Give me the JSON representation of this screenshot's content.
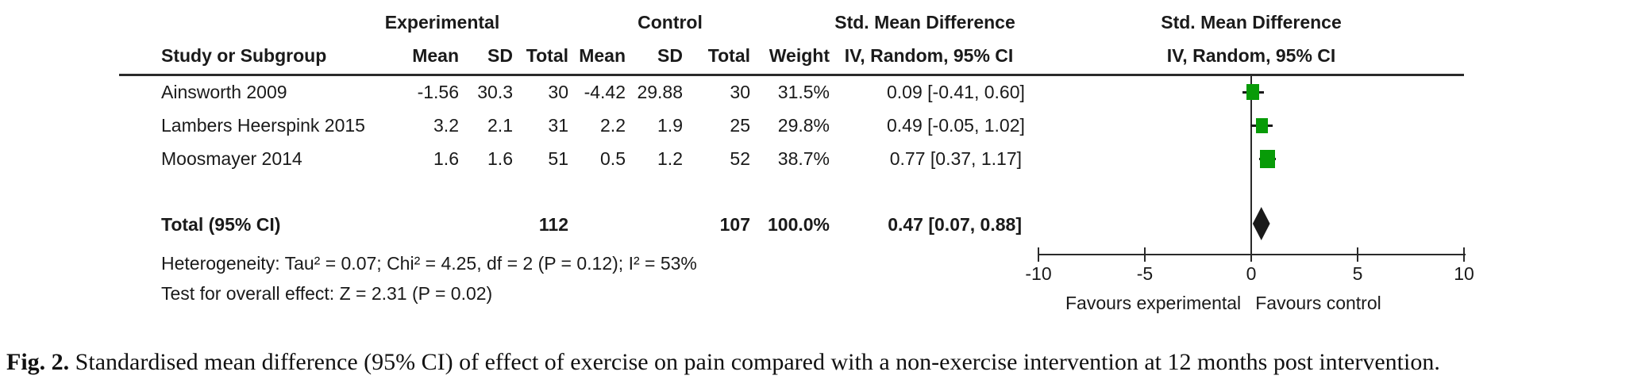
{
  "figure": {
    "header": {
      "group_experimental": "Experimental",
      "group_control": "Control",
      "smd_left_title": "Std. Mean Difference",
      "smd_left_sub": "IV, Random, 95% CI",
      "smd_right_title": "Std. Mean Difference",
      "smd_right_sub": "IV, Random, 95% CI",
      "col_study": "Study or Subgroup",
      "col_mean_exp": "Mean",
      "col_sd_exp": "SD",
      "col_total_exp": "Total",
      "col_mean_ctl": "Mean",
      "col_sd_ctl": "SD",
      "col_total_ctl": "Total",
      "col_weight": "Weight"
    },
    "footnotes": {
      "heterogeneity": "Heterogeneity: Tau² = 0.07; Chi² = 4.25, df = 2 (P = 0.12); I² = 53%",
      "overall_effect": "Test for overall effect: Z = 2.31 (P = 0.02)"
    },
    "axis_labels": {
      "favours_left": "Favours experimental",
      "favours_right": "Favours control"
    }
  },
  "chart_data": {
    "type": "forest",
    "effect_measure": "Std. Mean Difference, IV, Random, 95% CI",
    "studies": [
      {
        "name": "Ainsworth 2009",
        "mean_e": "-1.56",
        "sd_e": "30.3",
        "total_e": "30",
        "mean_c": "-4.42",
        "sd_c": "29.88",
        "total_c": "30",
        "weight": "31.5%",
        "weight_val": 31.5,
        "est": "0.09 [-0.41, 0.60]",
        "smd": 0.09,
        "lo": -0.41,
        "hi": 0.6
      },
      {
        "name": "Lambers Heerspink 2015",
        "mean_e": "3.2",
        "sd_e": "2.1",
        "total_e": "31",
        "mean_c": "2.2",
        "sd_c": "1.9",
        "total_c": "25",
        "weight": "29.8%",
        "weight_val": 29.8,
        "est": "0.49 [-0.05, 1.02]",
        "smd": 0.49,
        "lo": -0.05,
        "hi": 1.02
      },
      {
        "name": "Moosmayer 2014",
        "mean_e": "1.6",
        "sd_e": "1.6",
        "total_e": "51",
        "mean_c": "0.5",
        "sd_c": "1.2",
        "total_c": "52",
        "weight": "38.7%",
        "weight_val": 38.7,
        "est": "0.77 [0.37, 1.17]",
        "smd": 0.77,
        "lo": 0.37,
        "hi": 1.17
      }
    ],
    "total": {
      "label": "Total (95% CI)",
      "total_e": "112",
      "total_c": "107",
      "weight": "100.0%",
      "est": "0.47 [0.07, 0.88]",
      "smd": 0.47,
      "lo": 0.07,
      "hi": 0.88
    },
    "axis": {
      "min": -10,
      "max": 10,
      "ticks": [
        "-10",
        "-5",
        "0",
        "5",
        "10"
      ],
      "tick_values": [
        -10,
        -5,
        0,
        5,
        10
      ]
    },
    "colors": {
      "marker": "#089b08",
      "diamond": "#1a1a1a",
      "line": "#2a2a2a"
    }
  },
  "caption": {
    "tag": "Fig. 2.",
    "text": "Standardised mean difference (95% CI) of effect of exercise on pain compared with a non-exercise intervention at 12 months post intervention."
  }
}
